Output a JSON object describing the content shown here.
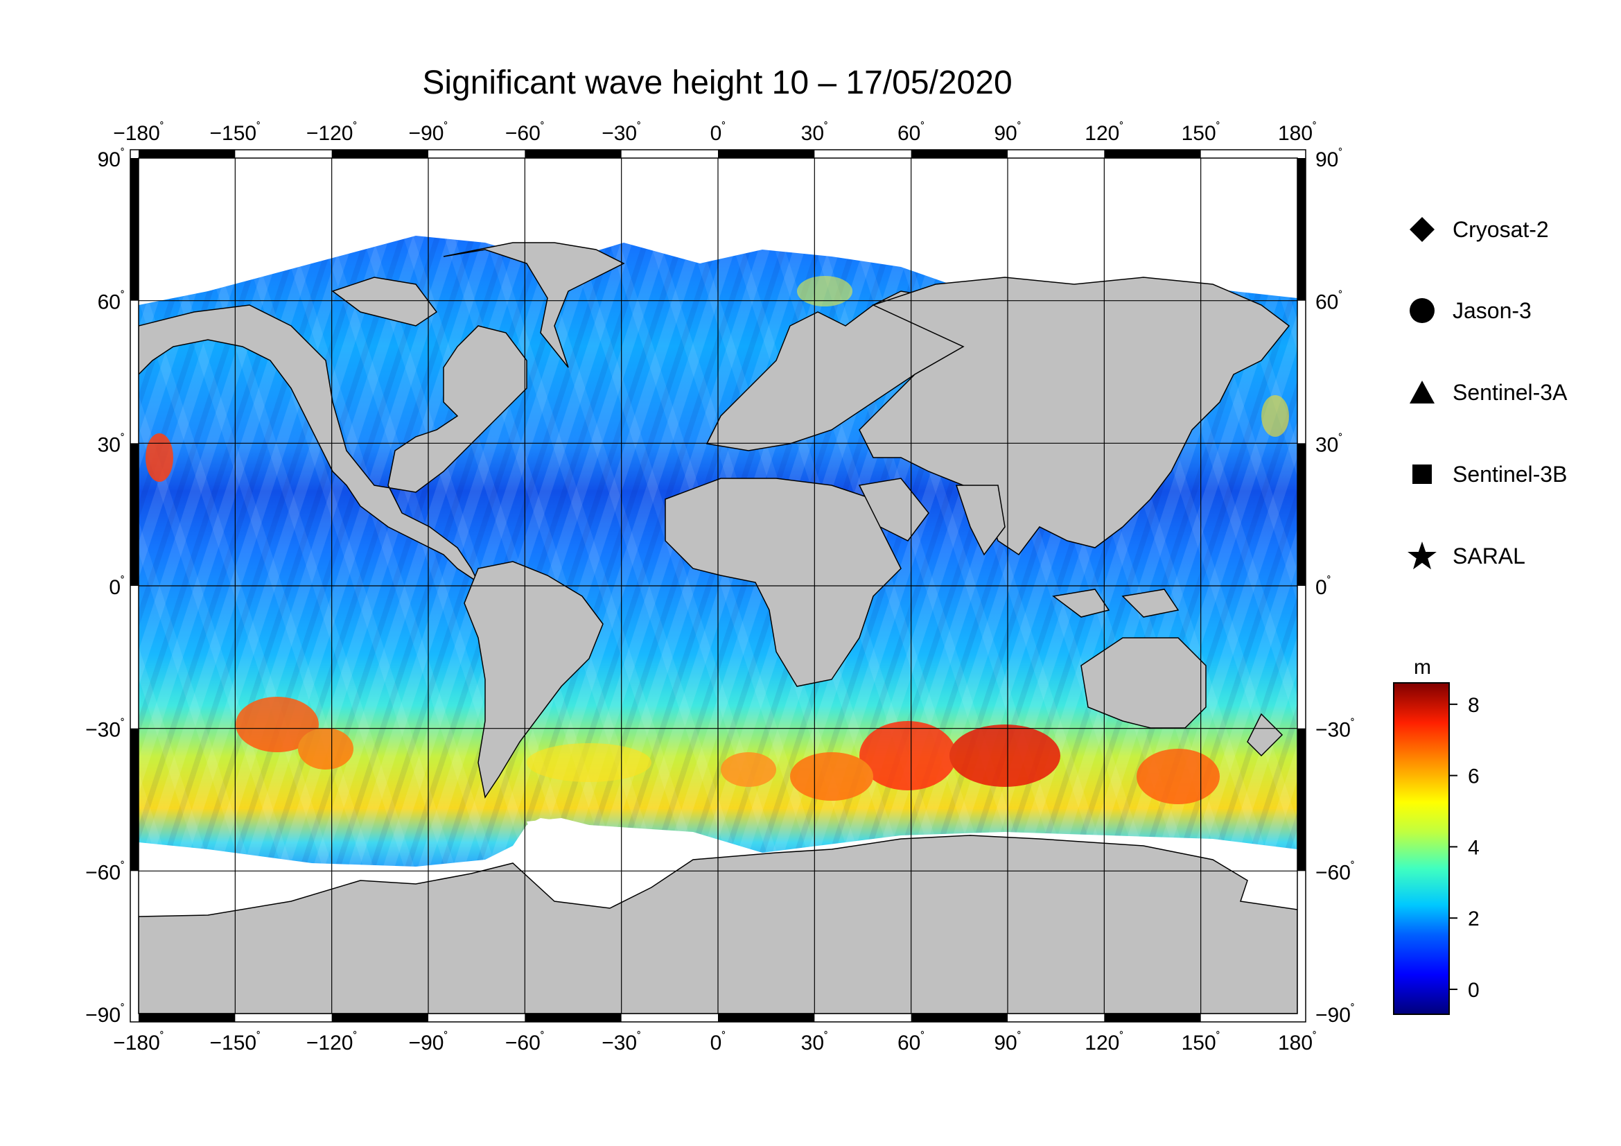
{
  "title": "Significant wave height 10 – 17/05/2020",
  "map": {
    "lon_ticks": [
      "−180",
      "−150",
      "−120",
      "−90",
      "−60",
      "−30",
      "0",
      "30",
      "60",
      "90",
      "120",
      "150",
      "180"
    ],
    "lat_ticks": [
      "90",
      "60",
      "30",
      "0",
      "−30",
      "−60",
      "−90"
    ],
    "degree_symbol": "˚",
    "land_color": "#c0c0c0",
    "ice_color": "#ffffff",
    "grid_color": "#000000"
  },
  "legend": {
    "items": [
      {
        "label": "Cryosat-2",
        "icon": "diamond-icon"
      },
      {
        "label": "Jason-3",
        "icon": "circle-icon"
      },
      {
        "label": "Sentinel-3A",
        "icon": "triangle-icon"
      },
      {
        "label": "Sentinel-3B",
        "icon": "square-icon"
      },
      {
        "label": "SARAL",
        "icon": "star-icon"
      }
    ]
  },
  "colorbar": {
    "unit": "m",
    "ticks": [
      "8",
      "6",
      "4",
      "2",
      "0"
    ],
    "range": [
      -0.7,
      8.6
    ],
    "colors": [
      "#00007a",
      "#0000ff",
      "#0060ff",
      "#00c8ff",
      "#40ffc0",
      "#c0ff40",
      "#ffff00",
      "#ff9000",
      "#ff2000",
      "#800000"
    ]
  }
}
